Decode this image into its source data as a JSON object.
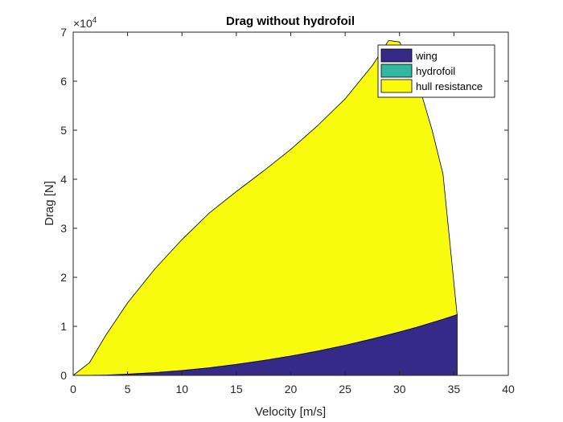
{
  "chart_data": {
    "type": "area",
    "title": "Drag without hydrofoil",
    "xlabel": "Velocity [m/s]",
    "ylabel": "Drag [N]",
    "xlim": [
      0,
      40
    ],
    "ylim": [
      0,
      70000
    ],
    "x_ticks": [
      "0",
      "5",
      "10",
      "15",
      "20",
      "25",
      "30",
      "35",
      "40"
    ],
    "y_ticks": [
      "0",
      "1",
      "2",
      "3",
      "4",
      "5",
      "6",
      "7"
    ],
    "y_exponent_base": "×10",
    "y_exponent_power": "4",
    "stacked": true,
    "grid": false,
    "legend_position": "top-right",
    "x": [
      0,
      1.5,
      3,
      5,
      7.5,
      10,
      12.5,
      15,
      17.5,
      20,
      22.5,
      25,
      27.5,
      29,
      30,
      31,
      32,
      33,
      34,
      35.3
    ],
    "series": [
      {
        "name": "wing",
        "color": "#352a87",
        "values": [
          0,
          10,
          60,
          260,
          580,
          1000,
          1550,
          2250,
          3050,
          3950,
          4980,
          6150,
          7450,
          8300,
          8870,
          9470,
          10100,
          10780,
          11460,
          12400
        ]
      },
      {
        "name": "hydrofoil",
        "color": "#33b7a0",
        "values": [
          0,
          0,
          0,
          0,
          0,
          0,
          0,
          0,
          0,
          0,
          0,
          0,
          0,
          0,
          0,
          0,
          0,
          0,
          0,
          0
        ]
      },
      {
        "name": "hull resistance",
        "color": "#f9fb0e",
        "values": [
          0,
          2590,
          8140,
          14540,
          21120,
          26700,
          31550,
          35250,
          38650,
          42150,
          46020,
          50250,
          55750,
          60000,
          59130,
          54030,
          47400,
          39220,
          29540,
          -200
        ]
      }
    ]
  }
}
